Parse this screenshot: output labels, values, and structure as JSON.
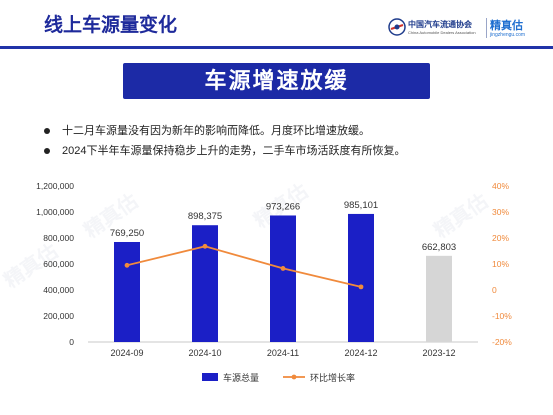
{
  "header": {
    "title": "线上车源量变化"
  },
  "logos": {
    "caam_cn": "中国汽车流通协会",
    "caam_en": "China Automobile Dealers Association",
    "jingzhengu_cn": "精真估",
    "jingzhengu_en": "jingzhengu.com"
  },
  "banner": {
    "title": "车源增速放缓"
  },
  "bullets": [
    "十二月车源量没有因为新年的影响而降低。月度环比增速放缓。",
    "2024下半年车源量保持稳步上升的走势，二手车市场活跃度有所恢复。"
  ],
  "colors": {
    "accent_blue": "#1c2aa6",
    "bar_blue": "#1b1fc6",
    "bar_gray": "#d6d6d6",
    "line_orange": "#f08a3c",
    "right_axis_orange": "#f08a3c"
  },
  "chart_data": {
    "type": "bar",
    "categories": [
      "2024-09",
      "2024-10",
      "2024-11",
      "2024-12",
      "2023-12"
    ],
    "series": [
      {
        "name": "车源总量",
        "kind": "bar",
        "axis": "left",
        "values": [
          769250,
          898375,
          973266,
          985101,
          662803
        ],
        "labels": [
          "769,250",
          "898,375",
          "973,266",
          "985,101",
          "662,803"
        ],
        "highlight": [
          false,
          false,
          false,
          false,
          true
        ]
      },
      {
        "name": "环比增长率",
        "kind": "line",
        "axis": "right",
        "values": [
          9.5,
          16.8,
          8.3,
          1.2,
          null
        ]
      }
    ],
    "y_left": {
      "min": 0,
      "max": 1200000,
      "step": 200000,
      "ticks": [
        "0",
        "200,000",
        "400,000",
        "600,000",
        "800,000",
        "1,000,000",
        "1,200,000"
      ]
    },
    "y_right": {
      "min": -20,
      "max": 40,
      "step": 10,
      "ticks": [
        "-20%",
        "-10%",
        "0",
        "10%",
        "20%",
        "30%",
        "40%"
      ]
    },
    "legend": {
      "placement": "bottom",
      "items": [
        "车源总量",
        "环比增长率"
      ]
    },
    "grid": false
  }
}
